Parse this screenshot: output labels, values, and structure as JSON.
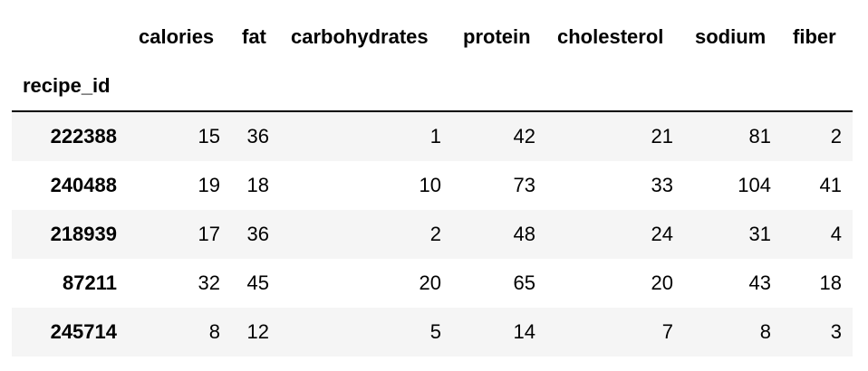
{
  "table": {
    "index_name": "recipe_id",
    "columns": [
      "calories",
      "fat",
      "carbohydrates",
      "protein",
      "cholesterol",
      "sodium",
      "fiber"
    ],
    "rows": [
      {
        "index": "222388",
        "values": [
          "15",
          "36",
          "1",
          "42",
          "21",
          "81",
          "2"
        ]
      },
      {
        "index": "240488",
        "values": [
          "19",
          "18",
          "10",
          "73",
          "33",
          "104",
          "41"
        ]
      },
      {
        "index": "218939",
        "values": [
          "17",
          "36",
          "2",
          "48",
          "24",
          "31",
          "4"
        ]
      },
      {
        "index": "87211",
        "values": [
          "32",
          "45",
          "20",
          "65",
          "20",
          "43",
          "18"
        ]
      },
      {
        "index": "245714",
        "values": [
          "8",
          "12",
          "5",
          "14",
          "7",
          "8",
          "3"
        ]
      }
    ]
  },
  "colors": {
    "stripe": "#f5f5f5",
    "header_rule": "#000000",
    "text": "#000000"
  }
}
